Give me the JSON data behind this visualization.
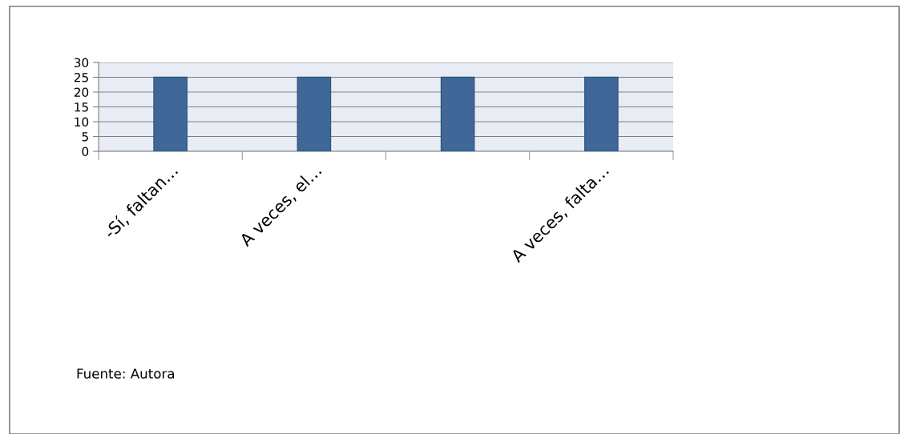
{
  "chart_data": {
    "type": "bar",
    "categories": [
      "-Sí, faltan…",
      "A veces, el…",
      null,
      "A veces, falta…"
    ],
    "values": [
      25,
      25,
      25,
      25
    ],
    "color": "#3f6899",
    "ylim": [
      0,
      30
    ],
    "yticks": [
      0,
      5,
      10,
      15,
      20,
      25,
      30
    ],
    "grid": "y",
    "legend": false,
    "annotations": [
      "Fuente: Autora"
    ]
  }
}
